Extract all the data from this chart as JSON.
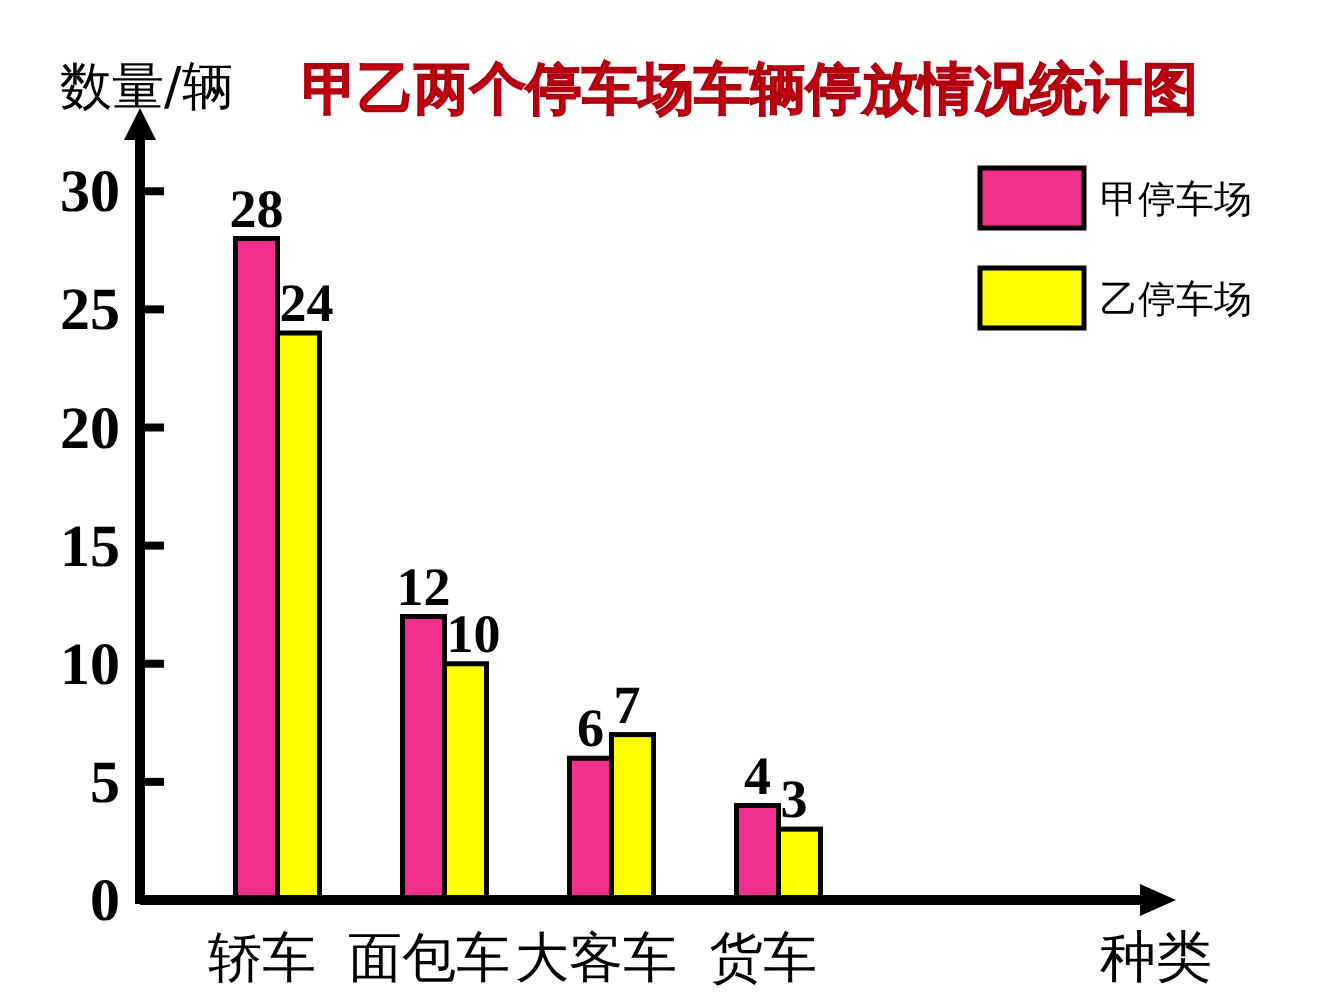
{
  "chart_data": {
    "type": "bar",
    "title": "甲乙两个停车场车辆停放情况统计图",
    "xlabel": "种类",
    "ylabel": "数量/辆",
    "categories": [
      "轿车",
      "面包车",
      "大客车",
      "货车"
    ],
    "series": [
      {
        "name": "甲停车场",
        "color": "#f0308c",
        "values": [
          28,
          12,
          6,
          4
        ]
      },
      {
        "name": "乙停车场",
        "color": "#ffff00",
        "values": [
          24,
          10,
          7,
          3
        ]
      }
    ],
    "ylim": [
      0,
      32
    ],
    "yticks": [
      0,
      5,
      10,
      15,
      20,
      25,
      30
    ],
    "data_labels": true,
    "legend": "top right"
  }
}
